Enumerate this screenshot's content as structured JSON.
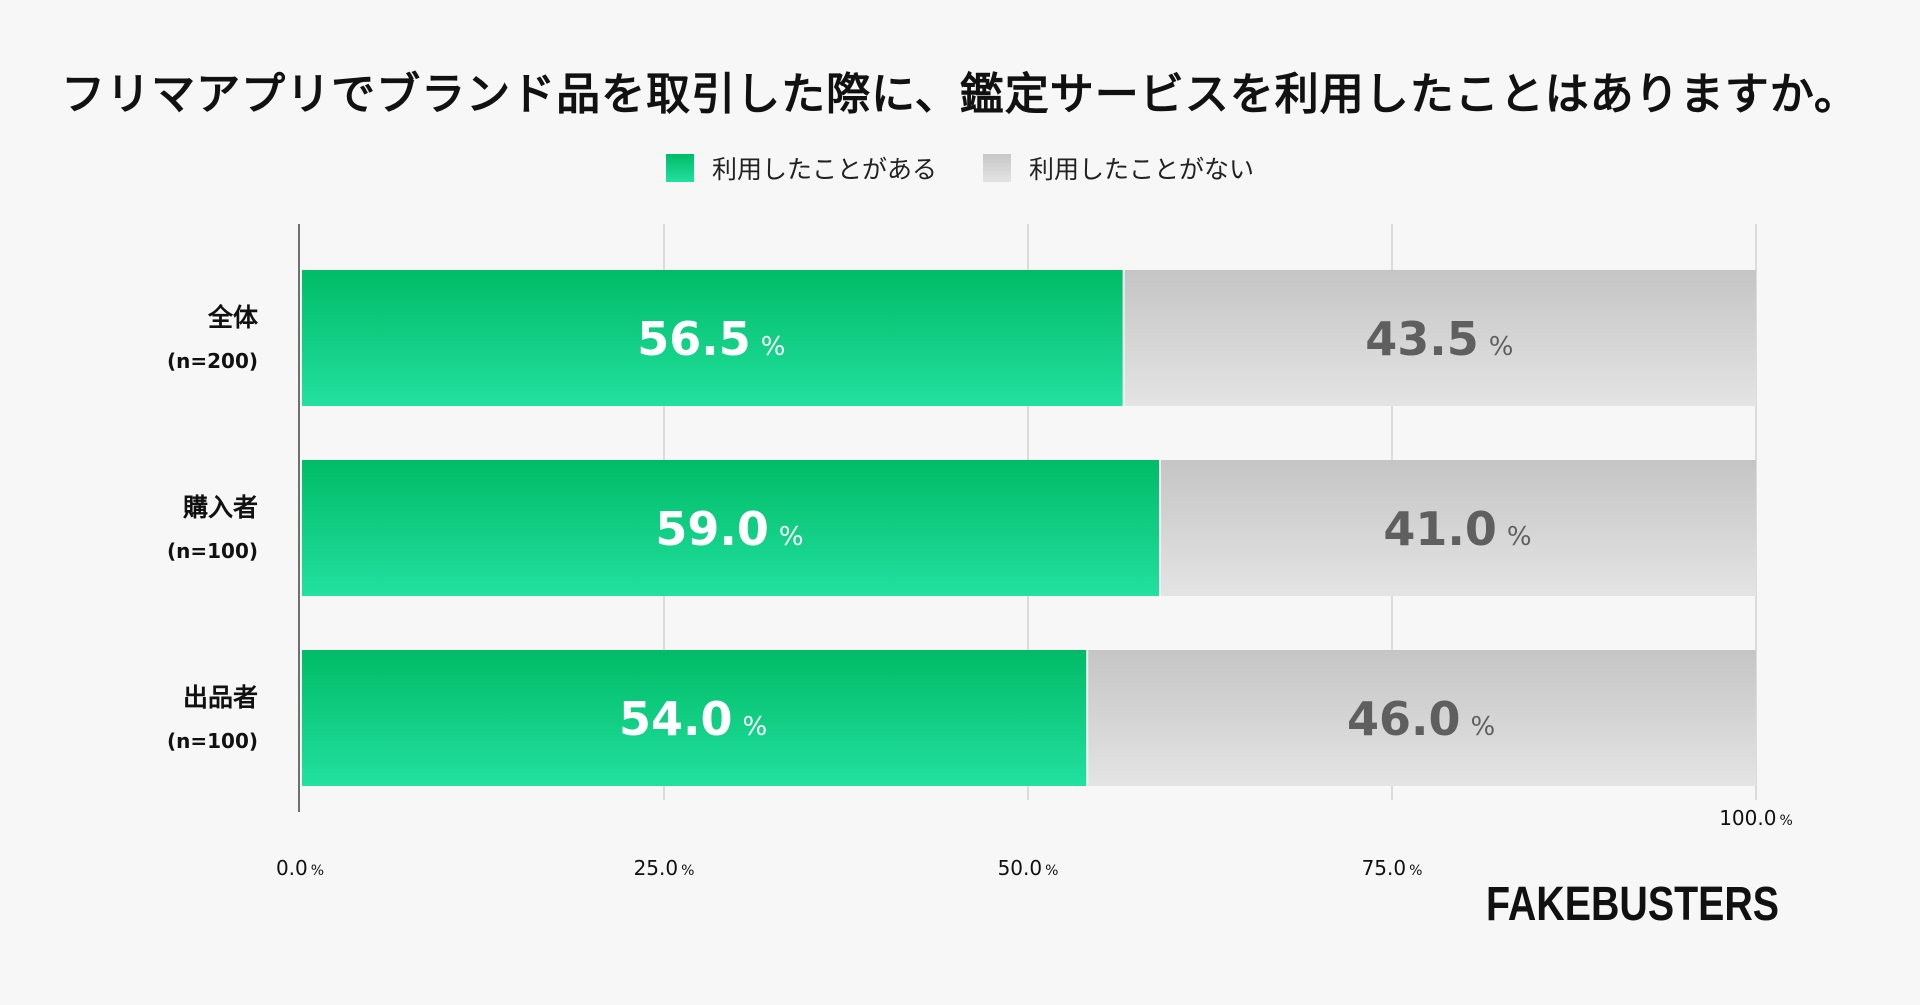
{
  "chart_data": {
    "type": "bar",
    "orientation": "horizontal",
    "stacked": true,
    "title": "フリマアプリでブランド品を取引した際に、鑑定サービスを利用したことはありますか。",
    "categories": [
      {
        "name": "全体",
        "n": "(n=200)"
      },
      {
        "name": "購入者",
        "n": "(n=100)"
      },
      {
        "name": "出品者",
        "n": "(n=100)"
      }
    ],
    "series": [
      {
        "name": "利用したことがある",
        "values": [
          56.5,
          59.0,
          54.0
        ],
        "color": "#00bb66",
        "label_color": "#ffffff"
      },
      {
        "name": "利用したことがない",
        "values": [
          43.5,
          41.0,
          46.0
        ],
        "color": "#c8c9c8",
        "label_color": "#5f5f5f"
      }
    ],
    "value_labels": {
      "series_0": [
        "56.5",
        "59.0",
        "54.0"
      ],
      "series_1": [
        "43.5",
        "41.0",
        "46.0"
      ]
    },
    "unit": "%",
    "xlim": [
      0,
      100
    ],
    "xticks": [
      "0.0",
      "25.0",
      "50.0",
      "75.0",
      "100.0"
    ],
    "xtick_values": [
      0,
      25,
      50,
      75,
      100
    ],
    "grid": true,
    "legend": "top-center"
  },
  "logo": {
    "text": "FAKEBUSTERS"
  }
}
